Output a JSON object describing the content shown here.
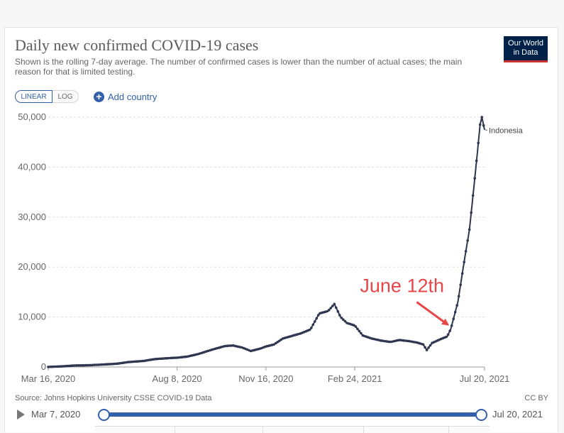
{
  "header": {
    "title": "Daily new confirmed COVID-19 cases",
    "subtitle": "Shown is the rolling 7-day average. The number of confirmed cases is lower than the number of actual cases; the main reason for that is limited testing.",
    "logo_line1": "Our World",
    "logo_line2": "in Data"
  },
  "controls": {
    "linear_label": "LINEAR",
    "log_label": "LOG",
    "add_country_label": "Add country"
  },
  "colors": {
    "series": "#2e3650",
    "accent": "#3360a9",
    "annotation": "#e8474a",
    "grid": "#dddddd"
  },
  "chart_data": {
    "type": "line",
    "title": "Daily new confirmed COVID-19 cases",
    "xlabel": "",
    "ylabel": "",
    "x_range": [
      "2020-03-16",
      "2021-07-20"
    ],
    "ylim": [
      0,
      50000
    ],
    "y_ticks": [
      "0",
      "10,000",
      "20,000",
      "30,000",
      "40,000",
      "50,000"
    ],
    "x_ticks": [
      "Mar 16, 2020",
      "Aug 8, 2020",
      "Nov 16, 2020",
      "Feb 24, 2021",
      "Jul 20, 2021"
    ],
    "grid": true,
    "series": [
      {
        "name": "Indonesia",
        "points": [
          [
            "2020-03-16",
            20
          ],
          [
            "2020-04-01",
            130
          ],
          [
            "2020-04-15",
            300
          ],
          [
            "2020-05-01",
            350
          ],
          [
            "2020-05-15",
            480
          ],
          [
            "2020-06-01",
            650
          ],
          [
            "2020-06-15",
            1000
          ],
          [
            "2020-07-01",
            1200
          ],
          [
            "2020-07-15",
            1600
          ],
          [
            "2020-08-01",
            1800
          ],
          [
            "2020-08-08",
            1850
          ],
          [
            "2020-08-20",
            2100
          ],
          [
            "2020-09-01",
            2600
          ],
          [
            "2020-09-15",
            3400
          ],
          [
            "2020-10-01",
            4200
          ],
          [
            "2020-10-10",
            4300
          ],
          [
            "2020-10-20",
            3900
          ],
          [
            "2020-10-30",
            3200
          ],
          [
            "2020-11-10",
            3700
          ],
          [
            "2020-11-16",
            4100
          ],
          [
            "2020-11-25",
            4500
          ],
          [
            "2020-12-05",
            5700
          ],
          [
            "2020-12-15",
            6200
          ],
          [
            "2020-12-25",
            6700
          ],
          [
            "2021-01-05",
            7500
          ],
          [
            "2021-01-15",
            10700
          ],
          [
            "2021-01-25",
            11200
          ],
          [
            "2021-02-01",
            12600
          ],
          [
            "2021-02-08",
            10000
          ],
          [
            "2021-02-15",
            8800
          ],
          [
            "2021-02-24",
            8300
          ],
          [
            "2021-03-05",
            6300
          ],
          [
            "2021-03-15",
            5700
          ],
          [
            "2021-03-25",
            5300
          ],
          [
            "2021-04-05",
            5000
          ],
          [
            "2021-04-15",
            5400
          ],
          [
            "2021-04-25",
            5200
          ],
          [
            "2021-05-05",
            4900
          ],
          [
            "2021-05-12",
            4500
          ],
          [
            "2021-05-16",
            3400
          ],
          [
            "2021-05-22",
            4800
          ],
          [
            "2021-06-01",
            5600
          ],
          [
            "2021-06-08",
            6100
          ],
          [
            "2021-06-12",
            7600
          ],
          [
            "2021-06-20",
            13000
          ],
          [
            "2021-06-27",
            21000
          ],
          [
            "2021-07-03",
            27500
          ],
          [
            "2021-07-08",
            36000
          ],
          [
            "2021-07-12",
            43000
          ],
          [
            "2021-07-15",
            48500
          ],
          [
            "2021-07-17",
            50000
          ],
          [
            "2021-07-20",
            47500
          ]
        ]
      }
    ],
    "annotations": [
      {
        "text": "June 12th",
        "x": "2021-06-12",
        "y": 7600
      }
    ]
  },
  "footer": {
    "source": "Source: Johns Hopkins University CSSE COVID-19 Data",
    "license": "CC BY"
  },
  "timeline": {
    "start_label": "Mar 7, 2020",
    "end_label": "Jul 20, 2021"
  }
}
